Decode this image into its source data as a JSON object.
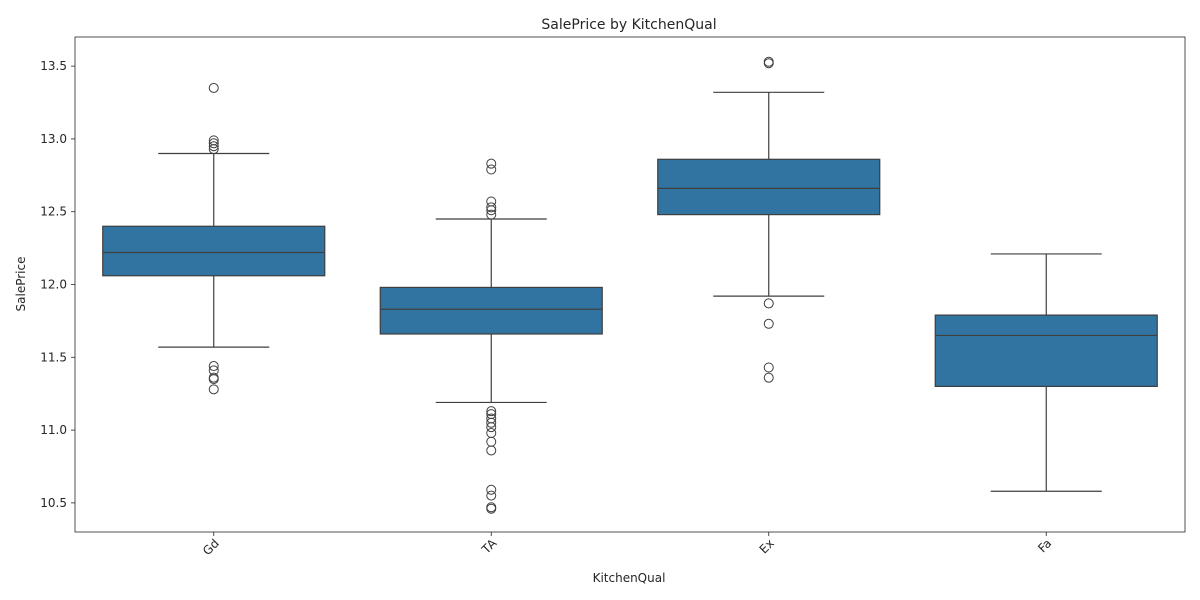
{
  "chart_data": {
    "type": "box",
    "title": "SalePrice by KitchenQual",
    "xlabel": "KitchenQual",
    "ylabel": "SalePrice",
    "ylim": [
      10.3,
      13.7
    ],
    "yticks": [
      "10.5",
      "11.0",
      "11.5",
      "12.0",
      "12.5",
      "13.0",
      "13.5"
    ],
    "categories": [
      "Gd",
      "TA",
      "Ex",
      "Fa"
    ],
    "box_color": "#3274a1",
    "line_color": "#3f3f3f",
    "boxes": [
      {
        "category": "Gd",
        "whisker_low": 11.57,
        "q1": 12.06,
        "median": 12.22,
        "q3": 12.4,
        "whisker_high": 12.9,
        "outliers": [
          13.35,
          12.99,
          12.97,
          12.95,
          12.93,
          11.44,
          11.41,
          11.36,
          11.35,
          11.28
        ]
      },
      {
        "category": "TA",
        "whisker_low": 11.19,
        "q1": 11.66,
        "median": 11.83,
        "q3": 11.98,
        "whisker_high": 12.45,
        "outliers": [
          12.83,
          12.79,
          12.57,
          12.53,
          12.51,
          12.48,
          11.13,
          11.11,
          11.08,
          11.05,
          11.02,
          10.98,
          10.92,
          10.86,
          10.59,
          10.55,
          10.47,
          10.46
        ]
      },
      {
        "category": "Ex",
        "whisker_low": 11.92,
        "q1": 12.48,
        "median": 12.66,
        "q3": 12.86,
        "whisker_high": 13.32,
        "outliers": [
          13.53,
          13.52,
          11.87,
          11.73,
          11.43,
          11.36
        ]
      },
      {
        "category": "Fa",
        "whisker_low": 10.58,
        "q1": 11.3,
        "median": 11.65,
        "q3": 11.79,
        "whisker_high": 12.21,
        "outliers": []
      }
    ]
  }
}
